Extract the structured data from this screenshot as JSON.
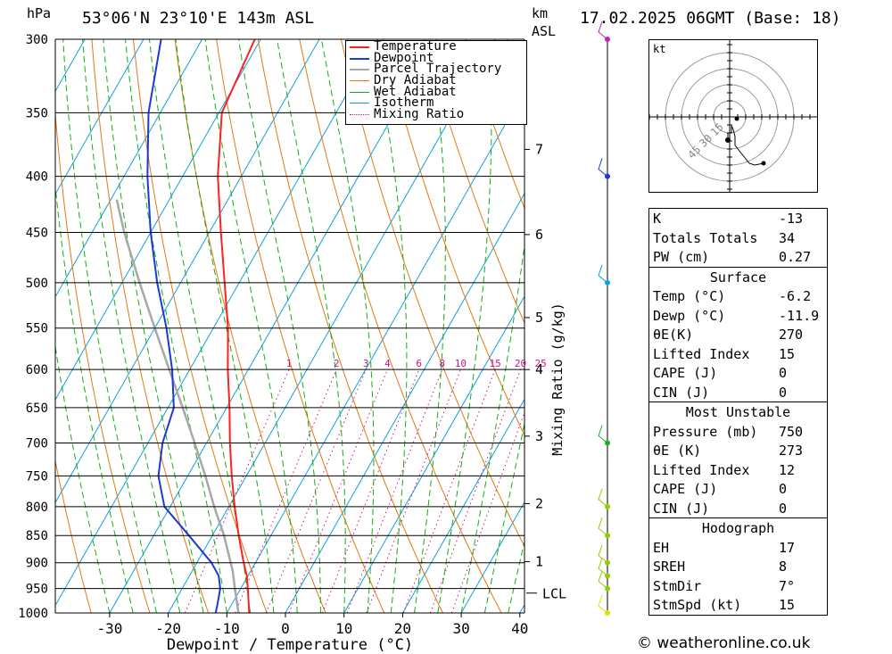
{
  "header": {
    "pressure_unit": "hPa",
    "location": "53°06'N 23°10'E 143m ASL",
    "km_label": "km",
    "asl_label": "ASL",
    "datetime": "17.02.2025 06GMT (Base: 18)"
  },
  "chart_data": {
    "type": "skew-t",
    "xlabel": "Dewpoint / Temperature (°C)",
    "ylabel_left": "hPa",
    "ylabel_right": "Mixing Ratio (g/kg)",
    "x_ticks": [
      -30,
      -20,
      -10,
      0,
      10,
      20,
      30,
      40
    ],
    "p_ticks": [
      300,
      350,
      400,
      450,
      500,
      550,
      600,
      650,
      700,
      750,
      800,
      850,
      900,
      950,
      1000
    ],
    "km_ticks": [
      {
        "label": "7",
        "p": 378
      },
      {
        "label": "6",
        "p": 452
      },
      {
        "label": "5",
        "p": 538
      },
      {
        "label": "4",
        "p": 600
      },
      {
        "label": "3",
        "p": 690
      },
      {
        "label": "2",
        "p": 795
      },
      {
        "label": "1",
        "p": 898
      }
    ],
    "lcl": {
      "label": "LCL",
      "p": 917
    },
    "mixing_ratio_labels": [
      "1",
      "2",
      "3",
      "4",
      "6",
      "8",
      "10",
      "15",
      "20",
      "25"
    ],
    "legend": [
      "Temperature",
      "Dewpoint",
      "Parcel Trajectory",
      "Dry Adiabat",
      "Wet Adiabat",
      "Isotherm",
      "Mixing Ratio"
    ],
    "legend_position": "top-right",
    "colors": {
      "temperature": "#ff2020",
      "dewpoint": "#1a3adb",
      "parcel": "#a8a8a8",
      "dry_adiabat": "#e07a10",
      "wet_adiabat": "#10b010",
      "isotherm": "#10a0e0",
      "mixing_ratio": "#d01080"
    },
    "temperature_profile": [
      {
        "p": 1000,
        "t": -6.2
      },
      {
        "p": 980,
        "t": -7.2
      },
      {
        "p": 950,
        "t": -8.8
      },
      {
        "p": 925,
        "t": -10.2
      },
      {
        "p": 900,
        "t": -12
      },
      {
        "p": 850,
        "t": -15.5
      },
      {
        "p": 800,
        "t": -19
      },
      {
        "p": 750,
        "t": -22.5
      },
      {
        "p": 700,
        "t": -26
      },
      {
        "p": 650,
        "t": -29.5
      },
      {
        "p": 600,
        "t": -33.5
      },
      {
        "p": 550,
        "t": -37.5
      },
      {
        "p": 500,
        "t": -42.5
      },
      {
        "p": 450,
        "t": -48
      },
      {
        "p": 400,
        "t": -54
      },
      {
        "p": 350,
        "t": -59.5
      },
      {
        "p": 300,
        "t": -61
      }
    ],
    "dewpoint_profile": [
      {
        "p": 1000,
        "t": -11.9
      },
      {
        "p": 980,
        "t": -12.5
      },
      {
        "p": 950,
        "t": -13.5
      },
      {
        "p": 925,
        "t": -15
      },
      {
        "p": 900,
        "t": -17.5
      },
      {
        "p": 850,
        "t": -24
      },
      {
        "p": 800,
        "t": -31
      },
      {
        "p": 750,
        "t": -35
      },
      {
        "p": 700,
        "t": -37.5
      },
      {
        "p": 650,
        "t": -39
      },
      {
        "p": 600,
        "t": -43
      },
      {
        "p": 550,
        "t": -48
      },
      {
        "p": 500,
        "t": -54
      },
      {
        "p": 450,
        "t": -60
      },
      {
        "p": 400,
        "t": -66
      },
      {
        "p": 350,
        "t": -72
      },
      {
        "p": 300,
        "t": -77
      }
    ],
    "parcel_profile": [
      {
        "p": 1000,
        "t": -8
      },
      {
        "p": 950,
        "t": -11
      },
      {
        "p": 917,
        "t": -13
      },
      {
        "p": 850,
        "t": -18
      },
      {
        "p": 800,
        "t": -22.5
      },
      {
        "p": 750,
        "t": -27
      },
      {
        "p": 700,
        "t": -32
      },
      {
        "p": 650,
        "t": -37.5
      },
      {
        "p": 600,
        "t": -43.5
      },
      {
        "p": 550,
        "t": -50
      },
      {
        "p": 500,
        "t": -57
      },
      {
        "p": 450,
        "t": -64.5
      },
      {
        "p": 420,
        "t": -69
      }
    ],
    "wind_profile_p": [
      1000,
      950,
      925,
      900,
      850,
      800,
      700,
      500,
      400,
      300
    ]
  },
  "hodograph": {
    "unit_label": "kt",
    "ring_labels": [
      "15",
      "30",
      "45"
    ]
  },
  "indices": [
    {
      "key": "K",
      "value": "-13"
    },
    {
      "key": "Totals Totals",
      "value": "34"
    },
    {
      "key": "PW (cm)",
      "value": "0.27"
    }
  ],
  "surface": {
    "title": "Surface",
    "rows": [
      {
        "key": "Temp (°C)",
        "value": "-6.2"
      },
      {
        "key": "Dewp (°C)",
        "value": "-11.9"
      },
      {
        "key": "θE(K)",
        "value": "270"
      },
      {
        "key": "Lifted Index",
        "value": "15"
      },
      {
        "key": "CAPE (J)",
        "value": "0"
      },
      {
        "key": "CIN (J)",
        "value": "0"
      }
    ]
  },
  "most_unstable": {
    "title": "Most Unstable",
    "rows": [
      {
        "key": "Pressure (mb)",
        "value": "750"
      },
      {
        "key": "θE (K)",
        "value": "273"
      },
      {
        "key": "Lifted Index",
        "value": "12"
      },
      {
        "key": "CAPE (J)",
        "value": "0"
      },
      {
        "key": "CIN (J)",
        "value": "0"
      }
    ]
  },
  "hodograph_panel": {
    "title": "Hodograph",
    "rows": [
      {
        "key": "EH",
        "value": "17"
      },
      {
        "key": "SREH",
        "value": "8"
      },
      {
        "key": "StmDir",
        "value": "7°"
      },
      {
        "key": "StmSpd (kt)",
        "value": "15"
      }
    ]
  },
  "footer": {
    "copyright": "© weatheronline.co.uk"
  }
}
